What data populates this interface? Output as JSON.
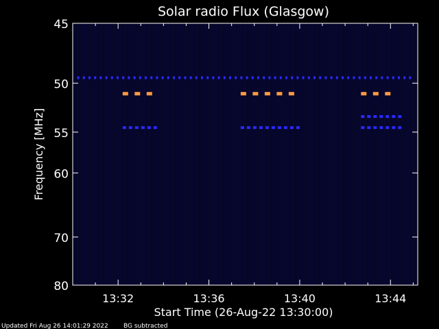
{
  "chart_data": {
    "type": "heatmap",
    "title": "Solar radio Flux (Glasgow)",
    "xlabel": "Start Time (26-Aug-22 13:30:00)",
    "ylabel": "Frequency [MHz]",
    "x_range_minutes": [
      0,
      15.2
    ],
    "y_range_mhz": [
      45,
      80
    ],
    "x_ticks": [
      {
        "label": "13:32",
        "minute": 2
      },
      {
        "label": "13:36",
        "minute": 6
      },
      {
        "label": "13:40",
        "minute": 10
      },
      {
        "label": "13:44",
        "minute": 14
      }
    ],
    "y_ticks": [
      {
        "label": "45",
        "mhz": 45
      },
      {
        "label": "50",
        "mhz": 50
      },
      {
        "label": "55",
        "mhz": 55
      },
      {
        "label": "60",
        "mhz": 60
      },
      {
        "label": "70",
        "mhz": 70
      },
      {
        "label": "80",
        "mhz": 80
      }
    ],
    "colors": {
      "background": "#000000",
      "spectrogram_base": "#060629",
      "bright_blue": "#2a2aff",
      "orange": "#ff9a40"
    },
    "features": [
      {
        "name": "blue-line-49.5",
        "mhz": 49.5,
        "color": "bright_blue",
        "segments": [
          [
            0.2,
            15.1
          ]
        ]
      },
      {
        "name": "orange-51",
        "mhz": 51,
        "color": "orange",
        "segments": [
          [
            2.2,
            3.9
          ],
          [
            7.4,
            10.1
          ],
          [
            12.7,
            14.5
          ]
        ]
      },
      {
        "name": "blue-54.5",
        "mhz": 54.5,
        "color": "bright_blue",
        "segments": [
          [
            2.2,
            3.9
          ],
          [
            7.4,
            10.1
          ],
          [
            12.7,
            14.5
          ]
        ]
      },
      {
        "name": "blue-53.3",
        "mhz": 53.3,
        "color": "bright_blue",
        "segments": [
          [
            12.7,
            14.5
          ]
        ]
      }
    ]
  },
  "footer": {
    "updated": "Updated Fri Aug 26 14:01:29 2022",
    "bg": "BG subtracted"
  }
}
